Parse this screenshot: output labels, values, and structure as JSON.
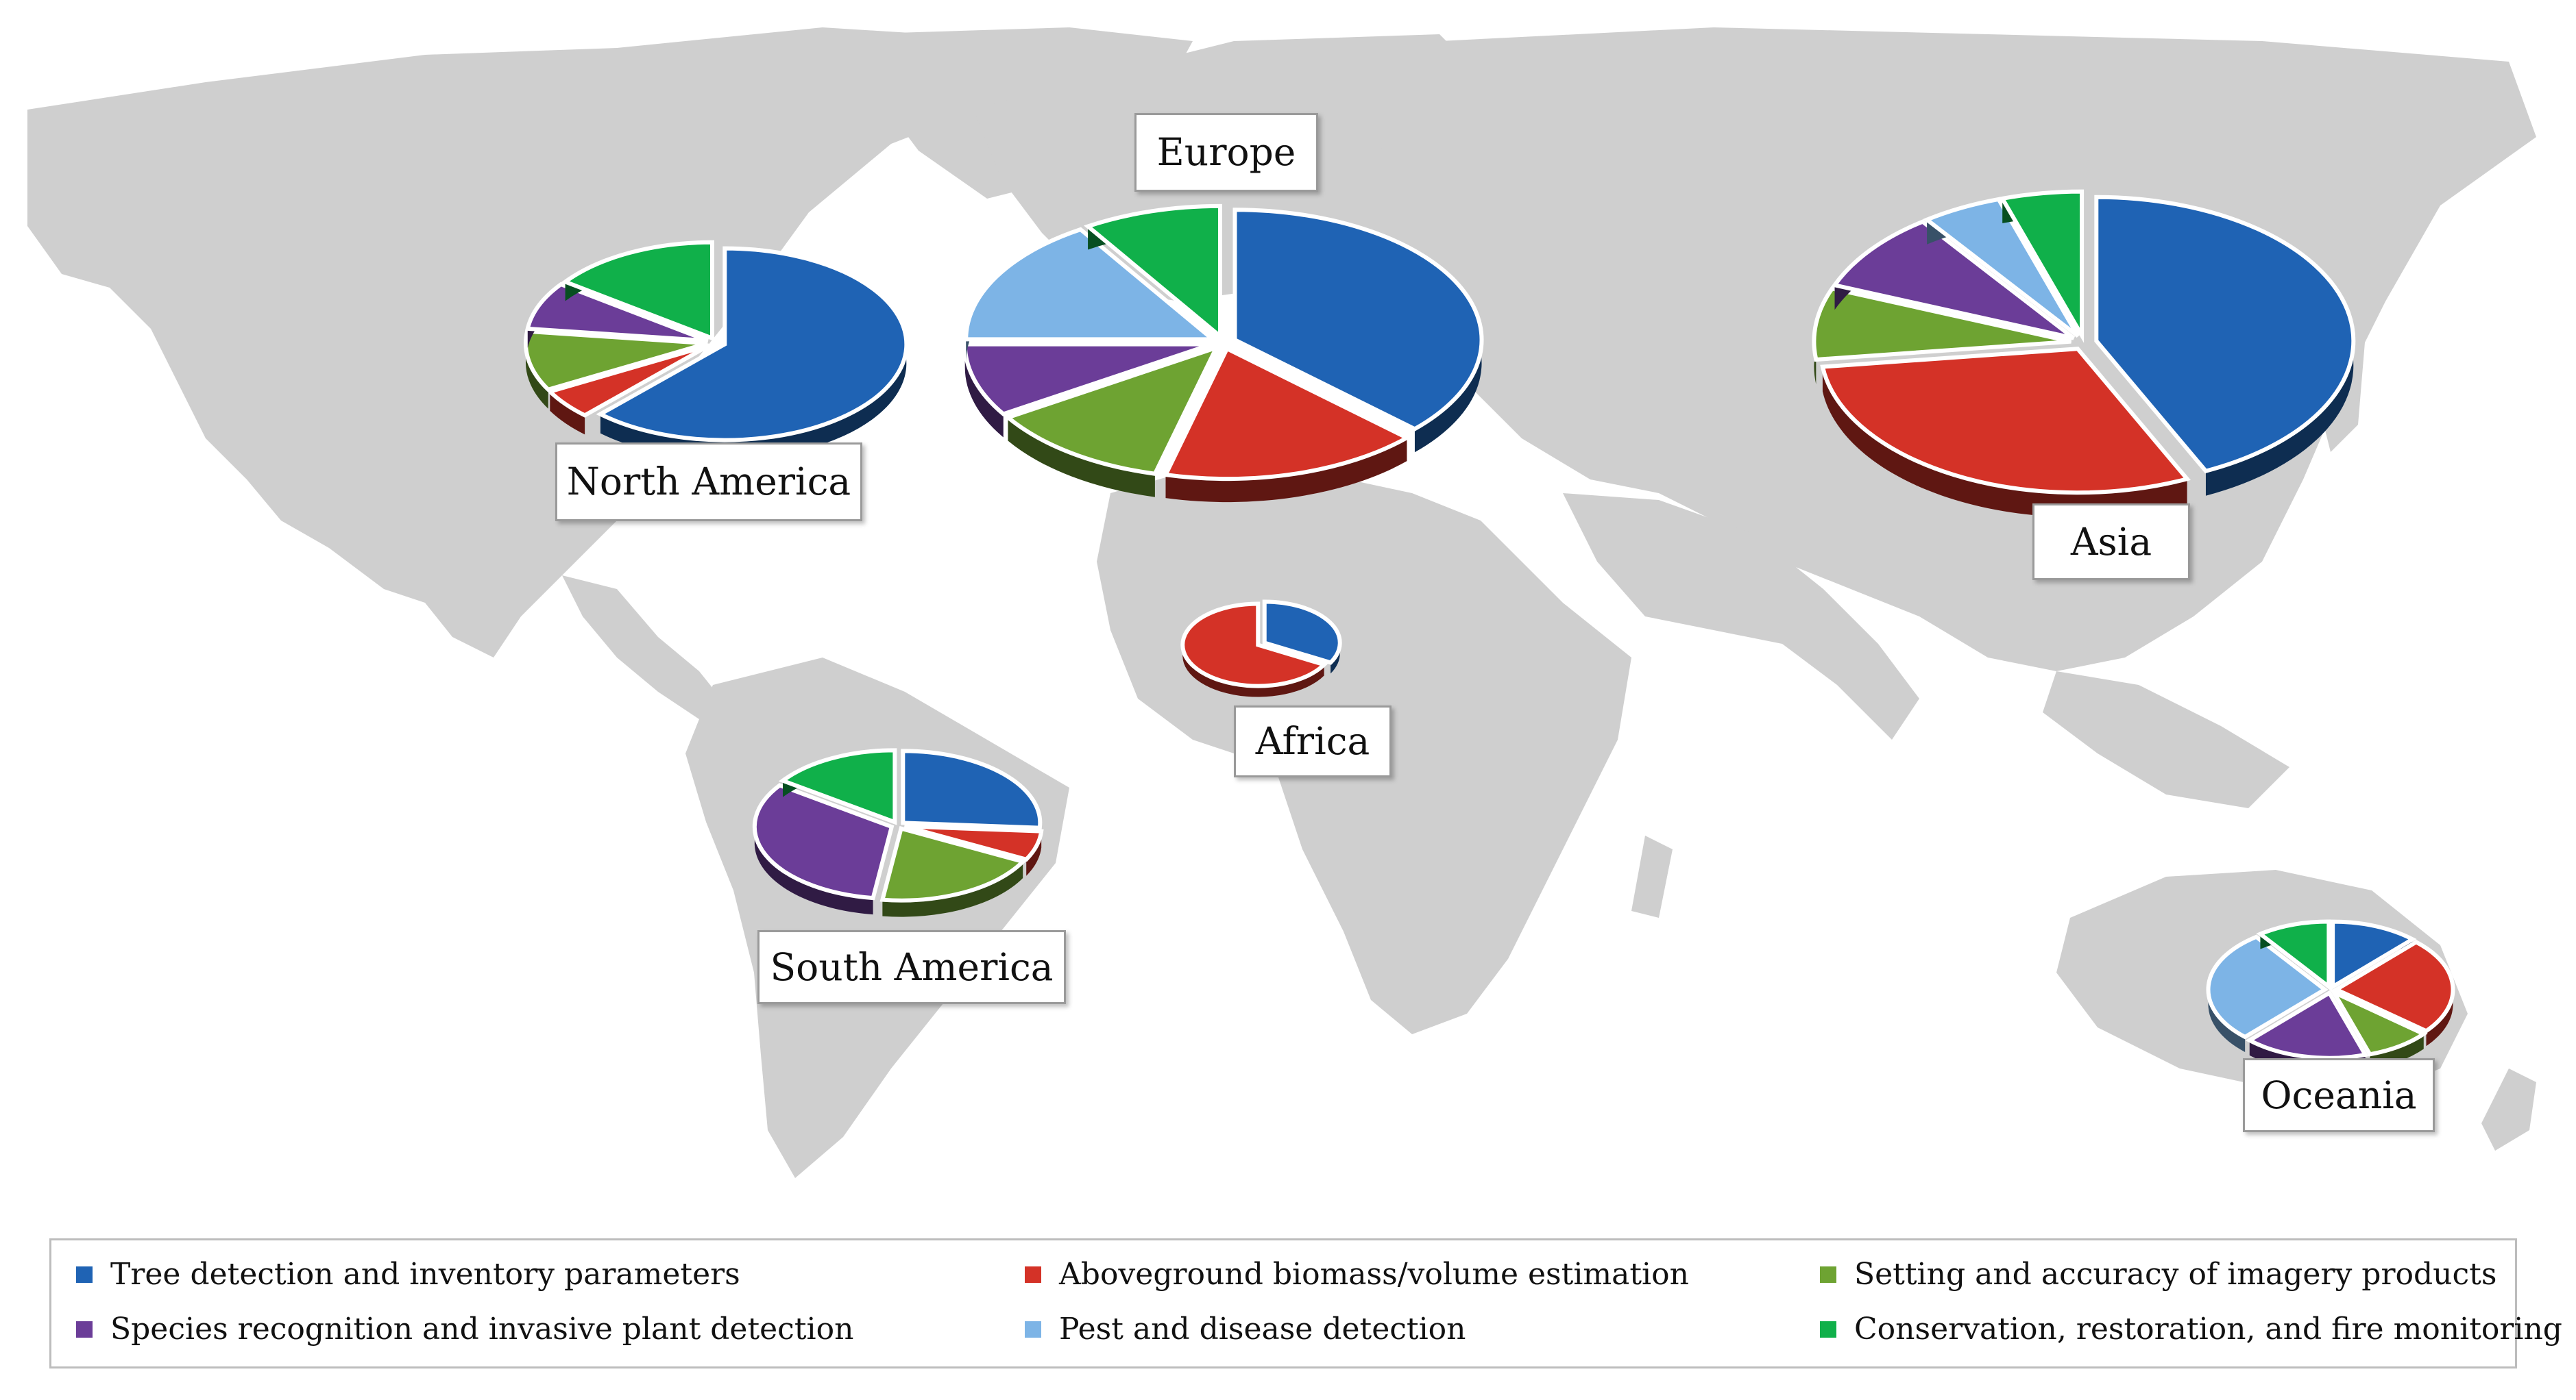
{
  "colors": {
    "map": "#cfcfcf",
    "background": "#ffffff"
  },
  "legend": [
    {
      "label": "Tree detection and inventory parameters",
      "color": "#1f63b4"
    },
    {
      "label": "Aboveground biomass/volume estimation",
      "color": "#d43227"
    },
    {
      "label": "Setting and accuracy of imagery products",
      "color": "#6ea332"
    },
    {
      "label": "Species recognition and invasive plant detection",
      "color": "#6b3d98"
    },
    {
      "label": "Pest and disease detection",
      "color": "#7db4e6"
    },
    {
      "label": "Conservation, restoration, and fire monitoring",
      "color": "#10b04a"
    }
  ],
  "chart_data": {
    "type": "pie",
    "title": "",
    "categories": [
      "Tree detection and inventory parameters",
      "Aboveground biomass/volume estimation",
      "Setting and accuracy of imagery products",
      "Species recognition and invasive plant detection",
      "Pest and disease detection",
      "Conservation, restoration, and fire monitoring"
    ],
    "series": [
      {
        "name": "North America",
        "values": [
          62,
          5,
          10,
          8,
          0,
          15
        ]
      },
      {
        "name": "Europe",
        "values": [
          37,
          17,
          12,
          9,
          16,
          9
        ]
      },
      {
        "name": "Asia",
        "values": [
          43,
          30,
          8,
          9,
          5,
          5
        ]
      },
      {
        "name": "Africa",
        "values": [
          33,
          67,
          0,
          0,
          0,
          0
        ]
      },
      {
        "name": "South America",
        "values": [
          24,
          6,
          18,
          30,
          0,
          14
        ]
      },
      {
        "name": "Oceania",
        "values": [
          12,
          24,
          9,
          17,
          28,
          10
        ]
      }
    ],
    "legend_position": "bottom",
    "style": "3d-exploded"
  }
}
